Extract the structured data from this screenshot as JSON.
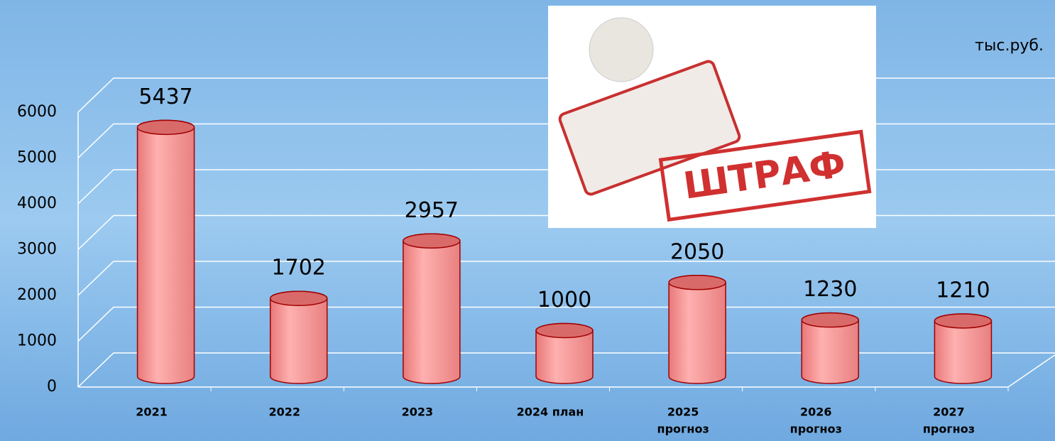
{
  "chart_data": {
    "type": "bar3d",
    "unit_label": "тыс.руб.",
    "image_text": "ШТРАФ",
    "categories": [
      [
        "2021"
      ],
      [
        "2022"
      ],
      [
        "2023"
      ],
      [
        "2024 план"
      ],
      [
        "2025",
        "прогноз"
      ],
      [
        "2026",
        "прогноз"
      ],
      [
        "2027",
        "прогноз"
      ]
    ],
    "values": [
      5437,
      1702,
      2957,
      1000,
      2050,
      1230,
      1210
    ],
    "color": "#ff9c9c",
    "ylim": [
      0,
      6000
    ],
    "yticks": [
      0,
      1000,
      2000,
      3000,
      4000,
      5000,
      6000
    ],
    "grid": true
  }
}
